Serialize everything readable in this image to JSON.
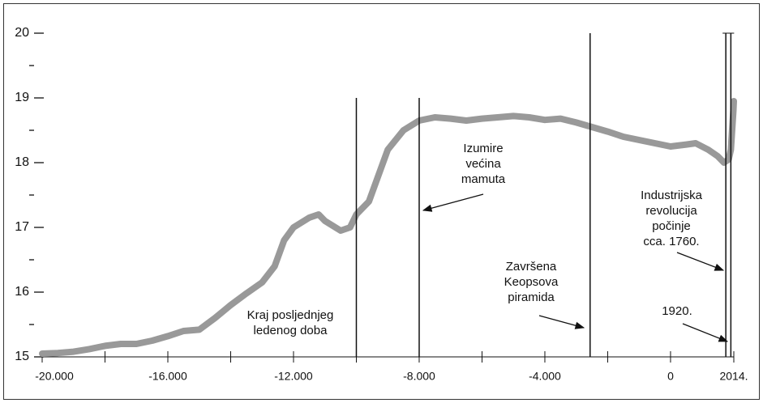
{
  "chart_data": {
    "type": "line",
    "x": [
      -20000,
      -19500,
      -19000,
      -18500,
      -18000,
      -17500,
      -17000,
      -16500,
      -16000,
      -15500,
      -15000,
      -14500,
      -14000,
      -13500,
      -13000,
      -12600,
      -12300,
      -12000,
      -11500,
      -11200,
      -11000,
      -10500,
      -10200,
      -10000,
      -9600,
      -9300,
      -9000,
      -8500,
      -8000,
      -7500,
      -7000,
      -6500,
      -6000,
      -5000,
      -4500,
      -4000,
      -3500,
      -3000,
      -2500,
      -2000,
      -1500,
      -1000,
      -500,
      0,
      500,
      800,
      1200,
      1500,
      1700,
      1850,
      1920,
      1960,
      2000,
      2014
    ],
    "series": [
      {
        "color": "#999999",
        "values": [
          15.05,
          15.06,
          15.08,
          15.12,
          15.17,
          15.2,
          15.2,
          15.25,
          15.32,
          15.4,
          15.42,
          15.6,
          15.8,
          15.98,
          16.15,
          16.4,
          16.8,
          17.0,
          17.15,
          17.2,
          17.1,
          16.95,
          17.0,
          17.2,
          17.4,
          17.8,
          18.2,
          18.5,
          18.65,
          18.7,
          18.68,
          18.65,
          18.68,
          18.72,
          18.7,
          18.66,
          18.68,
          18.62,
          18.55,
          18.48,
          18.4,
          18.35,
          18.3,
          18.25,
          18.28,
          18.3,
          18.2,
          18.1,
          18.0,
          18.05,
          18.2,
          18.5,
          18.8,
          18.95
        ]
      }
    ],
    "xlim": [
      -20000,
      2014
    ],
    "ylim": [
      15,
      20
    ],
    "xticks": [
      {
        "value": -20000,
        "label": "-20.000"
      },
      {
        "value": -16000,
        "label": "-16.000"
      },
      {
        "value": -12000,
        "label": "-12.000"
      },
      {
        "value": -8000,
        "label": "-8.000"
      },
      {
        "value": -4000,
        "label": "-4.000"
      },
      0,
      {
        "value": 2014,
        "label": "2014."
      }
    ],
    "xticks_minor": [
      -18000,
      -14000,
      -10000,
      -6000,
      -2000
    ],
    "yticks": [
      15,
      16,
      17,
      18,
      19,
      20
    ],
    "yticks_minor": [
      15.5,
      16.5,
      17.5,
      18.5,
      19.5
    ],
    "events": [
      {
        "x": -10000,
        "top": 19,
        "label": [
          "Kraj posljednjeg",
          "ledenog doba"
        ]
      },
      {
        "x": -8000,
        "top": 19,
        "label": [
          "Izumire",
          "većina",
          "mamuta"
        ]
      },
      {
        "x": -2560,
        "top": 20,
        "label": [
          "Završena",
          "Keopsova",
          "piramida"
        ]
      },
      {
        "x": 1760,
        "top": 20,
        "label": [
          "Industrijska",
          "revolucija",
          "počinje",
          "cca. 1760."
        ]
      },
      {
        "x": 1920,
        "top": 20,
        "label": [
          "1920."
        ]
      }
    ]
  }
}
